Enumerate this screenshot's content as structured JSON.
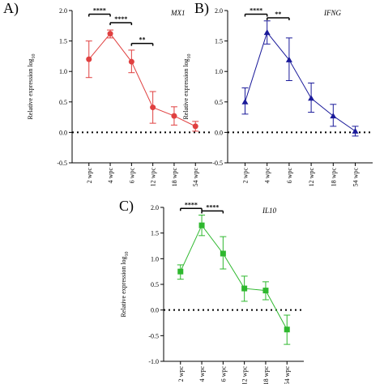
{
  "chart_data": [
    {
      "type": "line",
      "panel_label": "A)",
      "gene": "MX1",
      "ylabel": "Relative expression log",
      "ylabel_sub": "10",
      "ylim": [
        -0.5,
        2.0
      ],
      "yticks": [
        "2.0",
        "1.5",
        "1.0",
        "0.5",
        "0.0",
        "-0.5"
      ],
      "ytick_values": [
        2.0,
        1.5,
        1.0,
        0.5,
        0.0,
        -0.5
      ],
      "categories": [
        "2 wpc",
        "4 wpc",
        "6 wpc",
        "12 wpc",
        "18 wpc",
        "54 wpc"
      ],
      "values": [
        1.2,
        1.62,
        1.16,
        0.41,
        0.27,
        0.1
      ],
      "err_low": [
        0.9,
        1.55,
        0.98,
        0.15,
        0.12,
        0.02
      ],
      "err_high": [
        1.5,
        1.68,
        1.35,
        0.67,
        0.42,
        0.18
      ],
      "color": "#e04040",
      "marker": "circle",
      "baseline": 0.0,
      "significance": [
        {
          "from": 0,
          "to": 1,
          "y": 1.94,
          "label": "****"
        },
        {
          "from": 1,
          "to": 2,
          "y": 1.8,
          "label": "****"
        },
        {
          "from": 2,
          "to": 3,
          "y": 1.46,
          "label": "**"
        }
      ]
    },
    {
      "type": "line",
      "panel_label": "B)",
      "gene": "IFNG",
      "ylabel": "Relative expression log",
      "ylabel_sub": "10",
      "ylim": [
        -0.5,
        2.0
      ],
      "yticks": [
        "2.0",
        "1.5",
        "1.0",
        "0.5",
        "0.0",
        "-0.5"
      ],
      "ytick_values": [
        2.0,
        1.5,
        1.0,
        0.5,
        0.0,
        -0.5
      ],
      "categories": [
        "2 wpc",
        "4 wpc",
        "6 wpc",
        "12 wpc",
        "18 wpc",
        "54 wpc"
      ],
      "values": [
        0.5,
        1.64,
        1.19,
        0.56,
        0.27,
        0.02
      ],
      "err_low": [
        0.3,
        1.45,
        0.85,
        0.33,
        0.1,
        -0.06
      ],
      "err_high": [
        0.73,
        1.83,
        1.55,
        0.81,
        0.46,
        0.1
      ],
      "color": "#1a1a9a",
      "marker": "triangle",
      "baseline": 0.0,
      "significance": [
        {
          "from": 0,
          "to": 1,
          "y": 1.94,
          "label": "****"
        },
        {
          "from": 1,
          "to": 2,
          "y": 1.88,
          "label": "**"
        }
      ]
    },
    {
      "type": "line",
      "panel_label": "C)",
      "gene": "IL10",
      "ylabel": "Relative expression log",
      "ylabel_sub": "10",
      "ylim": [
        -1.0,
        2.0
      ],
      "yticks": [
        "2.0",
        "1.5",
        "1.0",
        "0.5",
        "0.0",
        "-0.5",
        "-1.0"
      ],
      "ytick_values": [
        2.0,
        1.5,
        1.0,
        0.5,
        0.0,
        -0.5,
        -1.0
      ],
      "categories": [
        "2 wpc",
        "4 wpc",
        "6 wpc",
        "12 wpc",
        "18 wpc",
        "54 wpc"
      ],
      "values": [
        0.75,
        1.65,
        1.1,
        0.42,
        0.38,
        -0.38
      ],
      "err_low": [
        0.6,
        1.45,
        0.8,
        0.17,
        0.2,
        -0.67
      ],
      "err_high": [
        0.88,
        1.85,
        1.43,
        0.66,
        0.55,
        -0.1
      ],
      "color": "#2eb82e",
      "marker": "square",
      "baseline": 0.0,
      "significance": [
        {
          "from": 0,
          "to": 1,
          "y": 1.98,
          "label": "****"
        },
        {
          "from": 1,
          "to": 2,
          "y": 1.93,
          "label": "****"
        }
      ]
    }
  ]
}
